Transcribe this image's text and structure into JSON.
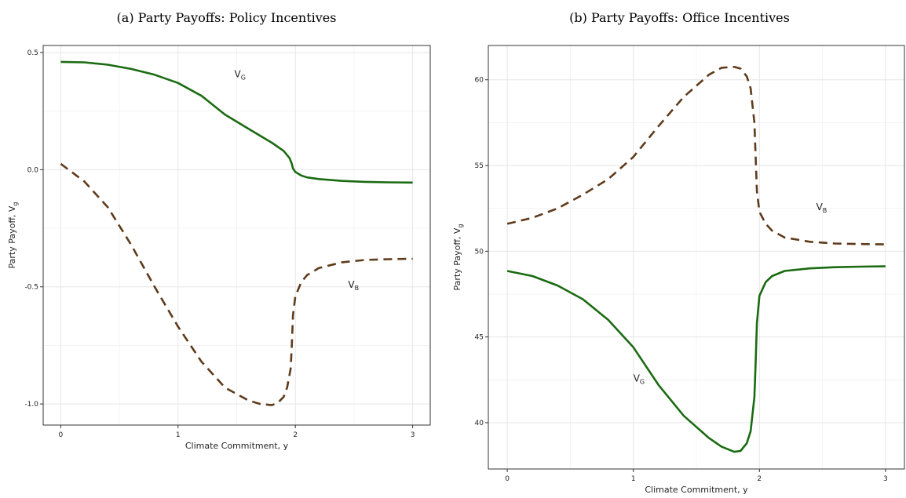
{
  "chart_data": [
    {
      "type": "line",
      "title": "(a) Party Payoffs: Policy Incentives",
      "xlabel": "Climate Commitment, y",
      "ylabel_main": "Party Payoff, V",
      "ylabel_sub": "g",
      "xlim": [
        -0.15,
        3.15
      ],
      "ylim": [
        -1.09,
        0.53
      ],
      "x_ticks": [
        {
          "v": 0,
          "label": "0"
        },
        {
          "v": 1,
          "label": "1"
        },
        {
          "v": 2,
          "label": "2"
        },
        {
          "v": 3,
          "label": "3"
        }
      ],
      "y_ticks": [
        {
          "v": 0.5,
          "label": "0.5"
        },
        {
          "v": 0,
          "label": "0.0"
        },
        {
          "v": -0.5,
          "label": "-0.5"
        },
        {
          "v": -1,
          "label": "-1.0"
        }
      ],
      "grid": true,
      "series": [
        {
          "color": "#1a6b12",
          "dash": "solid",
          "x": [
            0,
            0.2,
            0.4,
            0.6,
            0.8,
            1.0,
            1.2,
            1.4,
            1.6,
            1.8,
            1.9,
            1.95,
            1.97,
            1.98,
            2.0,
            2.05,
            2.1,
            2.2,
            2.4,
            2.6,
            2.8,
            3.0
          ],
          "y": [
            0.46,
            0.458,
            0.448,
            0.43,
            0.405,
            0.37,
            0.315,
            0.235,
            0.175,
            0.115,
            0.08,
            0.05,
            0.025,
            0.005,
            -0.01,
            -0.025,
            -0.033,
            -0.04,
            -0.048,
            -0.052,
            -0.054,
            -0.055
          ],
          "label_main": "V",
          "label_sub": "G",
          "label_x": 1.48,
          "label_y": 0.395
        },
        {
          "color": "#5e3b1c",
          "dash": "dashed",
          "x": [
            0,
            0.2,
            0.4,
            0.6,
            0.8,
            1.0,
            1.2,
            1.4,
            1.6,
            1.7,
            1.8,
            1.85,
            1.9,
            1.93,
            1.96,
            1.97,
            1.98,
            2.0,
            2.05,
            2.1,
            2.2,
            2.4,
            2.6,
            2.8,
            3.0
          ],
          "y": [
            0.025,
            -0.05,
            -0.16,
            -0.32,
            -0.5,
            -0.67,
            -0.82,
            -0.93,
            -0.985,
            -1.0,
            -1.005,
            -0.995,
            -0.97,
            -0.93,
            -0.85,
            -0.75,
            -0.62,
            -0.54,
            -0.48,
            -0.45,
            -0.42,
            -0.395,
            -0.385,
            -0.382,
            -0.38
          ],
          "label_main": "V",
          "label_sub": "B",
          "label_x": 2.45,
          "label_y": -0.505
        }
      ]
    },
    {
      "type": "line",
      "title": "(b) Party Payoffs: Office Incentives",
      "xlabel": "Climate Commitment, y",
      "ylabel_main": "Party Payoff, V",
      "ylabel_sub": "g",
      "xlim": [
        -0.15,
        3.15
      ],
      "ylim": [
        37.3,
        62.0
      ],
      "x_ticks": [
        {
          "v": 0,
          "label": "0"
        },
        {
          "v": 1,
          "label": "1"
        },
        {
          "v": 2,
          "label": "2"
        },
        {
          "v": 3,
          "label": "3"
        }
      ],
      "y_ticks": [
        {
          "v": 40,
          "label": "40"
        },
        {
          "v": 45,
          "label": "45"
        },
        {
          "v": 50,
          "label": "50"
        },
        {
          "v": 55,
          "label": "55"
        },
        {
          "v": 60,
          "label": "60"
        }
      ],
      "grid": true,
      "series": [
        {
          "color": "#5e3b1c",
          "dash": "dashed",
          "x": [
            0,
            0.2,
            0.4,
            0.6,
            0.8,
            1.0,
            1.2,
            1.4,
            1.6,
            1.7,
            1.8,
            1.85,
            1.9,
            1.93,
            1.96,
            1.97,
            1.98,
            2.0,
            2.05,
            2.1,
            2.2,
            2.4,
            2.6,
            2.8,
            3.0
          ],
          "y": [
            51.6,
            51.95,
            52.5,
            53.3,
            54.2,
            55.5,
            57.3,
            59.0,
            60.3,
            60.7,
            60.75,
            60.65,
            60.2,
            59.5,
            57.5,
            55.5,
            53.5,
            52.3,
            51.6,
            51.2,
            50.8,
            50.55,
            50.45,
            50.42,
            50.4
          ],
          "label_main": "V",
          "label_sub": "B",
          "label_x": 2.45,
          "label_y": 52.4
        },
        {
          "color": "#1a6b12",
          "dash": "solid",
          "x": [
            0,
            0.2,
            0.4,
            0.6,
            0.8,
            1.0,
            1.2,
            1.4,
            1.6,
            1.7,
            1.8,
            1.85,
            1.9,
            1.93,
            1.96,
            1.97,
            1.98,
            2.0,
            2.05,
            2.1,
            2.2,
            2.4,
            2.6,
            2.8,
            3.0
          ],
          "y": [
            48.85,
            48.55,
            48.0,
            47.2,
            46.0,
            44.4,
            42.2,
            40.4,
            39.1,
            38.6,
            38.3,
            38.35,
            38.8,
            39.5,
            41.5,
            43.5,
            45.8,
            47.4,
            48.2,
            48.55,
            48.85,
            49.0,
            49.07,
            49.1,
            49.12
          ],
          "label_main": "V",
          "label_sub": "G",
          "label_x": 1.0,
          "label_y": 42.4
        }
      ]
    }
  ]
}
